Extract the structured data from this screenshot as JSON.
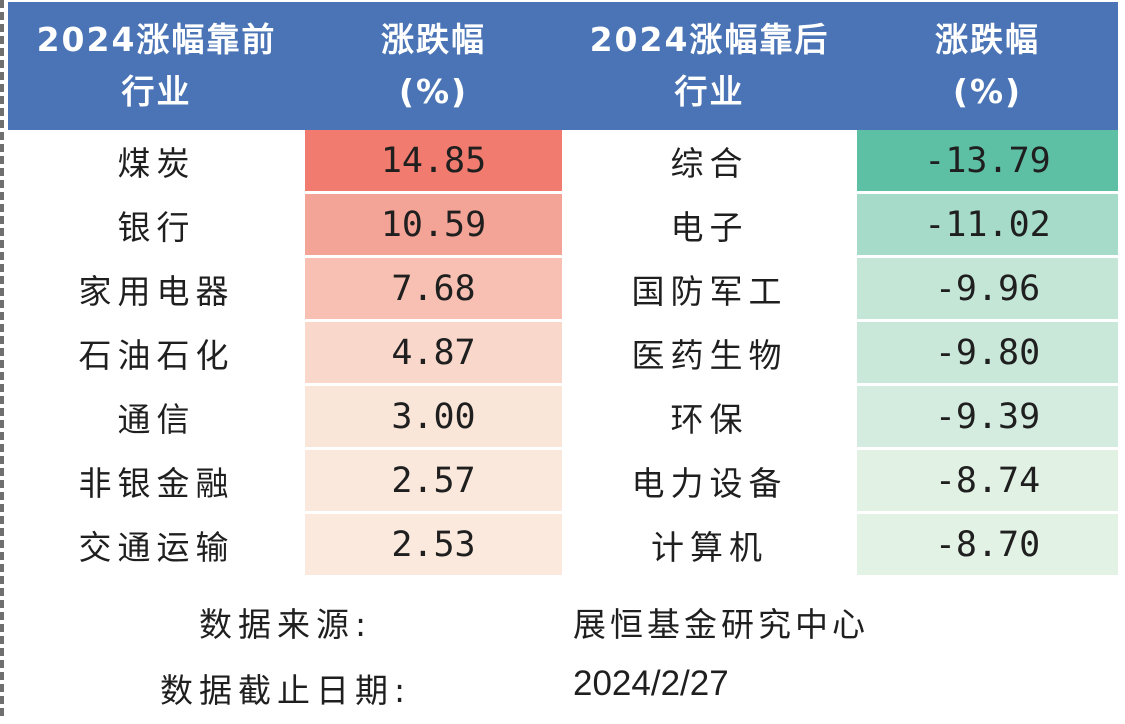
{
  "header": {
    "col1_line1": "2024涨幅靠前",
    "col1_line2": "行业",
    "col2_line1": "涨跌幅",
    "col2_line2": "(%)",
    "col3_line1": "2024涨幅靠后",
    "col3_line2": "行业",
    "col4_line1": "涨跌幅",
    "col4_line2": "(%)"
  },
  "rows": [
    {
      "top_name": "煤炭",
      "top_val": "14.85",
      "top_bg": "#f07b6e",
      "bot_name": "综合",
      "bot_val": "-13.79",
      "bot_bg": "#5dbfa3"
    },
    {
      "top_name": "银行",
      "top_val": "10.59",
      "top_bg": "#f4a497",
      "bot_name": "电子",
      "bot_val": "-11.02",
      "bot_bg": "#a6dbc9"
    },
    {
      "top_name": "家用电器",
      "top_val": "7.68",
      "top_bg": "#f7c0b2",
      "bot_name": "国防军工",
      "bot_val": "-9.96",
      "bot_bg": "#c4e6d7"
    },
    {
      "top_name": "石油石化",
      "top_val": "4.87",
      "top_bg": "#f9d8cb",
      "bot_name": "医药生物",
      "bot_val": "-9.80",
      "bot_bg": "#c9e8da"
    },
    {
      "top_name": "通信",
      "top_val": "3.00",
      "top_bg": "#fae5d9",
      "bot_name": "环保",
      "bot_val": "-9.39",
      "bot_bg": "#d3ecdf"
    },
    {
      "top_name": "非银金融",
      "top_val": "2.57",
      "top_bg": "#fbe8dc",
      "bot_name": "电力设备",
      "bot_val": "-8.74",
      "bot_bg": "#e1f1e4"
    },
    {
      "top_name": "交通运输",
      "top_val": "2.53",
      "top_bg": "#fbe9dd",
      "bot_name": "计算机",
      "bot_val": "-8.70",
      "bot_bg": "#e2f2e5"
    }
  ],
  "footer": {
    "source_label": "数据来源:",
    "source_value": "展恒基金研究中心",
    "date_label": "数据截止日期:",
    "date_value": "2024/2/27"
  }
}
